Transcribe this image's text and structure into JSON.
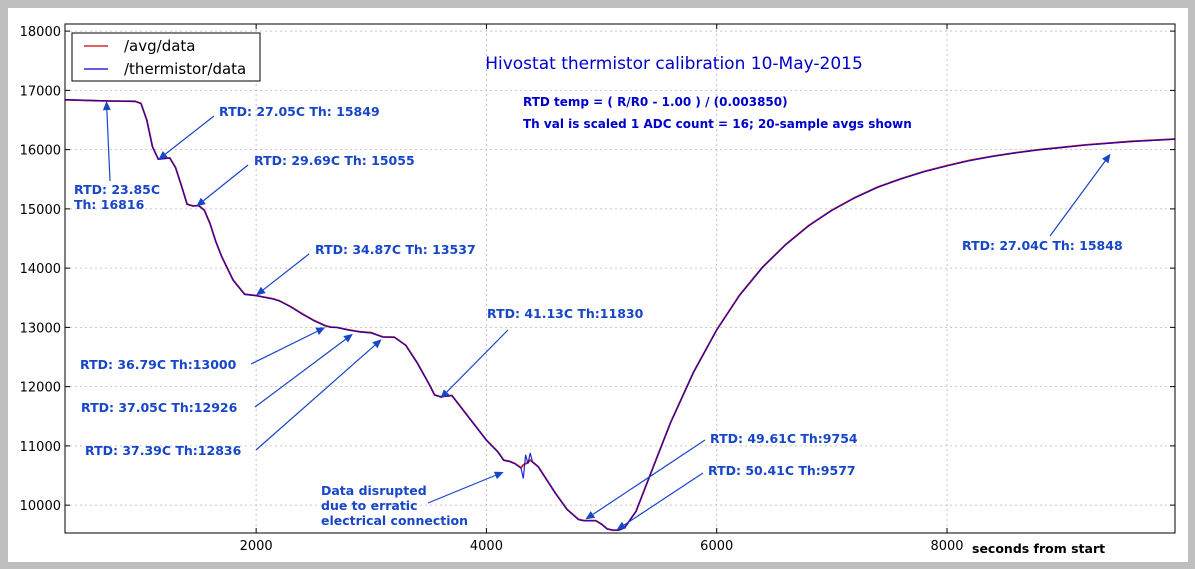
{
  "chart_data": {
    "type": "line",
    "title": "Hivostat thermistor calibration 10-May-2015",
    "notes": [
      "RTD temp = ( R/R0 - 1.00 ) / (0.003850)",
      "Th val is scaled 1 ADC count = 16; 20-sample avgs shown"
    ],
    "xlabel": "seconds from start",
    "ylabel": "",
    "xlim": [
      340,
      9980
    ],
    "ylim": [
      9530,
      18120
    ],
    "xticks": [
      2000,
      4000,
      6000,
      8000
    ],
    "yticks": [
      10000,
      11000,
      12000,
      13000,
      14000,
      15000,
      16000,
      17000,
      18000
    ],
    "grid": true,
    "legend_position": "top-left",
    "series": [
      {
        "name": "/avg/data",
        "color": "#cc0000",
        "x": [
          340,
          500,
          700,
          850,
          950,
          1000,
          1050,
          1100,
          1150,
          1200,
          1250,
          1300,
          1350,
          1400,
          1450,
          1500,
          1550,
          1600,
          1650,
          1700,
          1800,
          1900,
          2000,
          2100,
          2150,
          2200,
          2300,
          2400,
          2500,
          2600,
          2650,
          2700,
          2800,
          2900,
          3000,
          3050,
          3100,
          3200,
          3300,
          3400,
          3500,
          3550,
          3600,
          3700,
          3800,
          3900,
          4000,
          4100,
          4150,
          4200,
          4250,
          4300,
          4320,
          4340,
          4360,
          4380,
          4400,
          4450,
          4500,
          4600,
          4700,
          4800,
          4850,
          4900,
          4950,
          5000,
          5050,
          5100,
          5150,
          5200,
          5300,
          5400,
          5500,
          5600,
          5800,
          6000,
          6200,
          6400,
          6600,
          6800,
          7000,
          7200,
          7400,
          7600,
          7800,
          8000,
          8200,
          8400,
          8600,
          8800,
          9000,
          9200,
          9400,
          9600,
          9800,
          9980
        ],
        "values": [
          16840,
          16830,
          16820,
          16818,
          16815,
          16780,
          16500,
          16050,
          15840,
          15850,
          15860,
          15700,
          15400,
          15080,
          15050,
          15055,
          14980,
          14750,
          14450,
          14200,
          13800,
          13560,
          13537,
          13500,
          13480,
          13450,
          13350,
          13230,
          13120,
          13030,
          13005,
          13000,
          12960,
          12926,
          12910,
          12875,
          12840,
          12836,
          12700,
          12400,
          12050,
          11860,
          11830,
          11850,
          11600,
          11350,
          11100,
          10900,
          10760,
          10740,
          10700,
          10630,
          10680,
          10700,
          10720,
          10760,
          10730,
          10650,
          10500,
          10200,
          9930,
          9760,
          9740,
          9740,
          9740,
          9680,
          9600,
          9577,
          9580,
          9620,
          9900,
          10400,
          10900,
          11400,
          12250,
          12960,
          13550,
          14020,
          14400,
          14720,
          14980,
          15190,
          15370,
          15510,
          15630,
          15730,
          15820,
          15890,
          15950,
          16000,
          16040,
          16080,
          16110,
          16140,
          16160,
          16180
        ]
      },
      {
        "name": "/thermistor/data",
        "color": "#0000cc",
        "x": [
          340,
          500,
          700,
          850,
          950,
          1000,
          1050,
          1100,
          1150,
          1200,
          1250,
          1300,
          1350,
          1400,
          1450,
          1500,
          1550,
          1600,
          1650,
          1700,
          1800,
          1900,
          2000,
          2100,
          2150,
          2200,
          2300,
          2400,
          2500,
          2600,
          2650,
          2700,
          2800,
          2900,
          3000,
          3050,
          3100,
          3200,
          3300,
          3400,
          3500,
          3550,
          3600,
          3700,
          3800,
          3900,
          4000,
          4100,
          4150,
          4200,
          4250,
          4300,
          4320,
          4340,
          4360,
          4380,
          4400,
          4450,
          4500,
          4600,
          4700,
          4800,
          4850,
          4900,
          4950,
          5000,
          5050,
          5100,
          5150,
          5200,
          5300,
          5400,
          5500,
          5600,
          5800,
          6000,
          6200,
          6400,
          6600,
          6800,
          7000,
          7200,
          7400,
          7600,
          7800,
          8000,
          8200,
          8400,
          8600,
          8800,
          9000,
          9200,
          9400,
          9600,
          9800,
          9980
        ],
        "values": [
          16845,
          16835,
          16822,
          16816,
          16812,
          16775,
          16495,
          16045,
          15835,
          15849,
          15855,
          15695,
          15395,
          15075,
          15045,
          15055,
          14975,
          14745,
          14445,
          14195,
          13795,
          13555,
          13537,
          13495,
          13475,
          13445,
          13345,
          13225,
          13115,
          13025,
          13000,
          13000,
          12955,
          12926,
          12905,
          12870,
          12836,
          12832,
          12695,
          12395,
          12045,
          11855,
          11830,
          11845,
          11595,
          11345,
          11095,
          10895,
          10755,
          10735,
          10695,
          10625,
          10450,
          10850,
          10700,
          10880,
          10725,
          10645,
          10495,
          10195,
          9925,
          9755,
          9735,
          9738,
          9735,
          9675,
          9595,
          9577,
          9575,
          9615,
          9895,
          10395,
          10895,
          11395,
          12245,
          12955,
          13545,
          14015,
          14395,
          14715,
          14975,
          15185,
          15365,
          15505,
          15625,
          15725,
          15815,
          15885,
          15945,
          15995,
          16035,
          16075,
          16105,
          16135,
          16155,
          16175
        ]
      }
    ],
    "annotations": [
      {
        "id": "ann-23",
        "lines": [
          "RTD: 23.85C",
          "Th: 16816"
        ],
        "point": [
          700,
          16820
        ]
      },
      {
        "id": "ann-27a",
        "lines": [
          "RTD: 27.05C  Th: 15849"
        ],
        "point": [
          1150,
          15830
        ]
      },
      {
        "id": "ann-29",
        "lines": [
          "RTD: 29.69C  Th: 15055"
        ],
        "point": [
          1480,
          15040
        ]
      },
      {
        "id": "ann-34",
        "lines": [
          "RTD: 34.87C  Th: 13537"
        ],
        "point": [
          2000,
          13540
        ]
      },
      {
        "id": "ann-36",
        "lines": [
          "RTD: 36.79C  Th:13000"
        ],
        "point": [
          2600,
          13000
        ]
      },
      {
        "id": "ann-37a",
        "lines": [
          "RTD: 37.05C  Th:12926"
        ],
        "point": [
          2840,
          12890
        ]
      },
      {
        "id": "ann-37b",
        "lines": [
          "RTD: 37.39C  Th:12836"
        ],
        "point": [
          3090,
          12800
        ]
      },
      {
        "id": "ann-41",
        "lines": [
          "RTD: 41.13C  Th:11830"
        ],
        "point": [
          3600,
          11800
        ]
      },
      {
        "id": "ann-disrupt",
        "lines": [
          "Data disrupted",
          "due to erratic",
          "electrical connection"
        ],
        "point": [
          4150,
          10560
        ]
      },
      {
        "id": "ann-49",
        "lines": [
          "RTD: 49.61C  Th:9754"
        ],
        "point": [
          4860,
          9760
        ]
      },
      {
        "id": "ann-50",
        "lines": [
          "RTD: 50.41C  Th:9577"
        ],
        "point": [
          5130,
          9580
        ]
      },
      {
        "id": "ann-27b",
        "lines": [
          "RTD: 27.04C  Th: 15848"
        ],
        "point": [
          9420,
          15930
        ]
      }
    ]
  }
}
